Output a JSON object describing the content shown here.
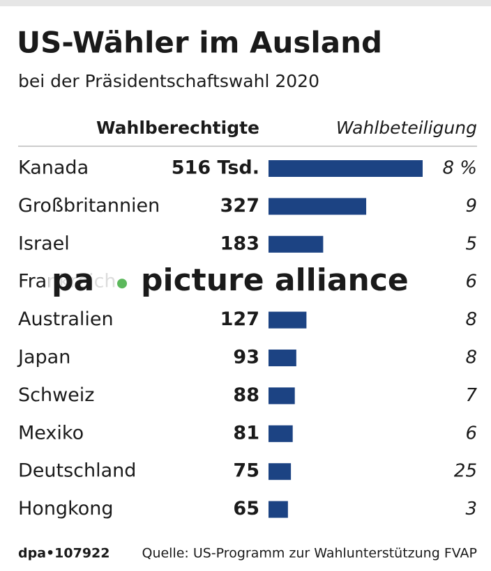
{
  "chart_data": {
    "type": "bar",
    "title": "US-Wähler im Ausland",
    "subtitle": "bei der Präsidentschaftswahl 2020",
    "value_header": "Wahlberechtigte",
    "turnout_header": "Wahlbeteiligung",
    "categories": [
      "Kanada",
      "Großbritannien",
      "Israel",
      "Frankreich",
      "Australien",
      "Japan",
      "Schweiz",
      "Mexiko",
      "Deutschland",
      "Hongkong"
    ],
    "values": [
      516,
      327,
      183,
      null,
      127,
      93,
      88,
      81,
      75,
      65
    ],
    "value_labels": [
      "516 Tsd.",
      "327",
      "183",
      null,
      "127",
      "93",
      "88",
      "81",
      "75",
      "65"
    ],
    "turnout": [
      8,
      9,
      5,
      6,
      8,
      8,
      7,
      6,
      25,
      3
    ],
    "turnout_labels": [
      "8 %",
      "9",
      "5",
      "6",
      "8",
      "8",
      "7",
      "6",
      "25",
      "3"
    ],
    "color": "#1c4383",
    "source_id": "dpa•107922",
    "source": "Quelle: US-Programm zur Wahlunterstützung FVAP",
    "watermark": [
      "pa",
      "picture alliance"
    ]
  }
}
